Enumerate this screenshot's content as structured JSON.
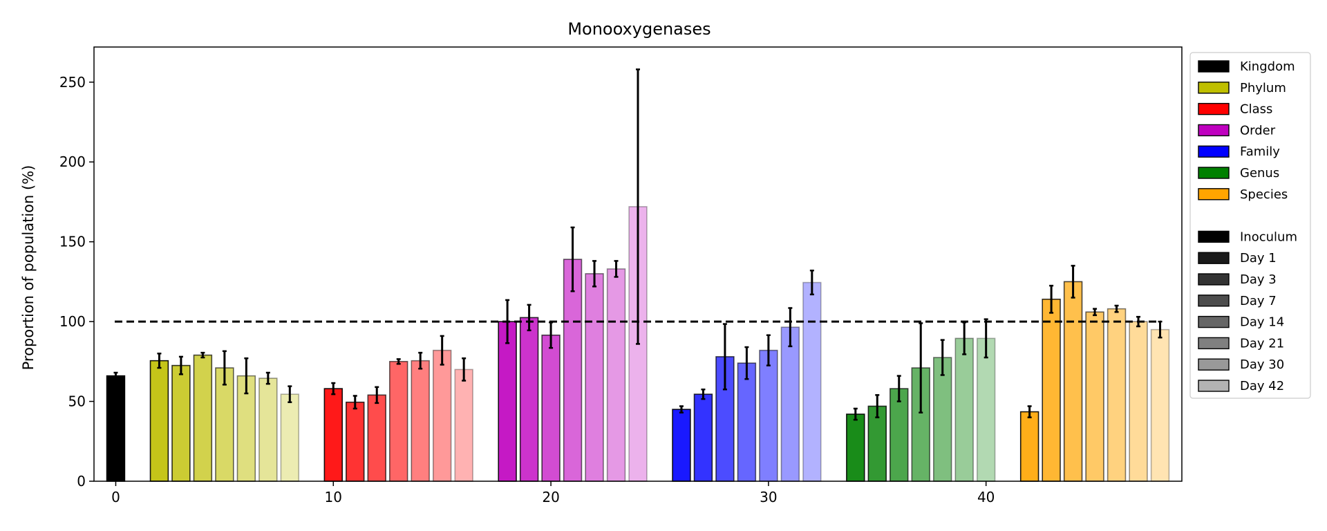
{
  "chart_data": {
    "type": "bar",
    "title": "Monooxygenases",
    "xlabel": "",
    "ylabel": "Proportion of population (%)",
    "xlim": [
      -1,
      49
    ],
    "ylim": [
      0,
      272
    ],
    "xticks": [
      0,
      10,
      20,
      30,
      40
    ],
    "yticks": [
      0,
      50,
      100,
      150,
      200,
      250
    ],
    "reference_line": {
      "y": 100,
      "style": "dashed",
      "color": "#000000"
    },
    "grid": false,
    "legend_position": "outside-right",
    "groups": [
      {
        "name": "Kingdom",
        "color": "#000000"
      },
      {
        "name": "Phylum",
        "color": "#bfbf00"
      },
      {
        "name": "Class",
        "color": "#ff0000"
      },
      {
        "name": "Order",
        "color": "#bf00bf"
      },
      {
        "name": "Family",
        "color": "#0000ff"
      },
      {
        "name": "Genus",
        "color": "#008000"
      },
      {
        "name": "Species",
        "color": "#ffa500"
      }
    ],
    "timepoints": [
      "Inoculum",
      "Day 1",
      "Day 3",
      "Day 7",
      "Day 14",
      "Day 21",
      "Day 30",
      "Day 42"
    ],
    "timepoint_legend_colors": [
      "#000000",
      "#1a1a1a",
      "#333333",
      "#4d4d4d",
      "#666666",
      "#808080",
      "#999999",
      "#b3b3b3"
    ],
    "timepoint_alphas": [
      1.0,
      0.9,
      0.8,
      0.7,
      0.6,
      0.5,
      0.4,
      0.3
    ],
    "bars": [
      {
        "x": 0,
        "group": "Kingdom",
        "timepoint": "Inoculum",
        "value": 66,
        "err": 2
      },
      {
        "x": 2,
        "group": "Phylum",
        "timepoint": "Day 1",
        "value": 75.5,
        "err": 4.5
      },
      {
        "x": 3,
        "group": "Phylum",
        "timepoint": "Day 3",
        "value": 72.5,
        "err": 5.5
      },
      {
        "x": 4,
        "group": "Phylum",
        "timepoint": "Day 7",
        "value": 79,
        "err": 1.5
      },
      {
        "x": 5,
        "group": "Phylum",
        "timepoint": "Day 14",
        "value": 71,
        "err": 10.5
      },
      {
        "x": 6,
        "group": "Phylum",
        "timepoint": "Day 21",
        "value": 66,
        "err": 11
      },
      {
        "x": 7,
        "group": "Phylum",
        "timepoint": "Day 30",
        "value": 64.5,
        "err": 3.5
      },
      {
        "x": 8,
        "group": "Phylum",
        "timepoint": "Day 42",
        "value": 54.5,
        "err": 5
      },
      {
        "x": 10,
        "group": "Class",
        "timepoint": "Day 1",
        "value": 58,
        "err": 3.5
      },
      {
        "x": 11,
        "group": "Class",
        "timepoint": "Day 3",
        "value": 49.5,
        "err": 4
      },
      {
        "x": 12,
        "group": "Class",
        "timepoint": "Day 7",
        "value": 54,
        "err": 5
      },
      {
        "x": 13,
        "group": "Class",
        "timepoint": "Day 14",
        "value": 75,
        "err": 1.5
      },
      {
        "x": 14,
        "group": "Class",
        "timepoint": "Day 21",
        "value": 75.5,
        "err": 5
      },
      {
        "x": 15,
        "group": "Class",
        "timepoint": "Day 30",
        "value": 82,
        "err": 9
      },
      {
        "x": 16,
        "group": "Class",
        "timepoint": "Day 42",
        "value": 70,
        "err": 7
      },
      {
        "x": 18,
        "group": "Order",
        "timepoint": "Day 1",
        "value": 100,
        "err": 13.5
      },
      {
        "x": 19,
        "group": "Order",
        "timepoint": "Day 3",
        "value": 102.5,
        "err": 8
      },
      {
        "x": 20,
        "group": "Order",
        "timepoint": "Day 7",
        "value": 91.5,
        "err": 8
      },
      {
        "x": 21,
        "group": "Order",
        "timepoint": "Day 14",
        "value": 139,
        "err": 20
      },
      {
        "x": 22,
        "group": "Order",
        "timepoint": "Day 21",
        "value": 130,
        "err": 8
      },
      {
        "x": 23,
        "group": "Order",
        "timepoint": "Day 30",
        "value": 133,
        "err": 5
      },
      {
        "x": 24,
        "group": "Order",
        "timepoint": "Day 42",
        "value": 172,
        "err": 86
      },
      {
        "x": 26,
        "group": "Family",
        "timepoint": "Day 1",
        "value": 45,
        "err": 2
      },
      {
        "x": 27,
        "group": "Family",
        "timepoint": "Day 3",
        "value": 54.5,
        "err": 3
      },
      {
        "x": 28,
        "group": "Family",
        "timepoint": "Day 7",
        "value": 78,
        "err": 20.5
      },
      {
        "x": 29,
        "group": "Family",
        "timepoint": "Day 14",
        "value": 74,
        "err": 10
      },
      {
        "x": 30,
        "group": "Family",
        "timepoint": "Day 21",
        "value": 82,
        "err": 9.5
      },
      {
        "x": 31,
        "group": "Family",
        "timepoint": "Day 30",
        "value": 96.5,
        "err": 12
      },
      {
        "x": 32,
        "group": "Family",
        "timepoint": "Day 42",
        "value": 124.5,
        "err": 7.5
      },
      {
        "x": 34,
        "group": "Genus",
        "timepoint": "Day 1",
        "value": 42,
        "err": 3.5
      },
      {
        "x": 35,
        "group": "Genus",
        "timepoint": "Day 3",
        "value": 47,
        "err": 7
      },
      {
        "x": 36,
        "group": "Genus",
        "timepoint": "Day 7",
        "value": 58,
        "err": 8
      },
      {
        "x": 37,
        "group": "Genus",
        "timepoint": "Day 14",
        "value": 71,
        "err": 28
      },
      {
        "x": 38,
        "group": "Genus",
        "timepoint": "Day 21",
        "value": 77.5,
        "err": 11
      },
      {
        "x": 39,
        "group": "Genus",
        "timepoint": "Day 30",
        "value": 89.5,
        "err": 10
      },
      {
        "x": 40,
        "group": "Genus",
        "timepoint": "Day 42",
        "value": 89.5,
        "err": 12
      },
      {
        "x": 42,
        "group": "Species",
        "timepoint": "Day 1",
        "value": 43.5,
        "err": 3.5
      },
      {
        "x": 43,
        "group": "Species",
        "timepoint": "Day 3",
        "value": 114,
        "err": 8.5
      },
      {
        "x": 44,
        "group": "Species",
        "timepoint": "Day 7",
        "value": 125,
        "err": 10
      },
      {
        "x": 45,
        "group": "Species",
        "timepoint": "Day 14",
        "value": 106,
        "err": 2
      },
      {
        "x": 46,
        "group": "Species",
        "timepoint": "Day 21",
        "value": 108,
        "err": 2
      },
      {
        "x": 47,
        "group": "Species",
        "timepoint": "Day 30",
        "value": 100,
        "err": 3
      },
      {
        "x": 48,
        "group": "Species",
        "timepoint": "Day 42",
        "value": 95,
        "err": 5
      }
    ]
  }
}
